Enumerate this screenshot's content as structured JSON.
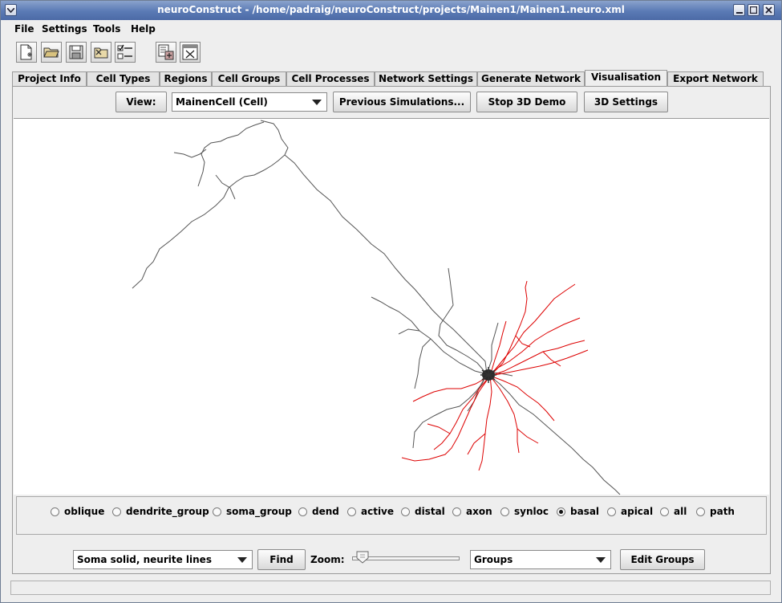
{
  "window": {
    "title": "neuroConstruct - /home/padraig/neuroConstruct/projects/Mainen1/Mainen1.neuro.xml"
  },
  "menu": [
    "File",
    "Settings",
    "Tools",
    "Help"
  ],
  "toolbar_icons": [
    "new-project-icon",
    "open-project-icon",
    "save-project-icon",
    "close-project-icon",
    "options-icon",
    "import-icon",
    "exit-icon"
  ],
  "tabs": [
    "Project Info",
    "Cell Types",
    "Regions",
    "Cell Groups",
    "Cell Processes",
    "Network Settings",
    "Generate Network",
    "Visualisation",
    "Export Network"
  ],
  "active_tab": "Visualisation",
  "controls": {
    "view_button": "View:",
    "view_select": "MainenCell (Cell)",
    "prev_sims_button": "Previous Simulations...",
    "stop_demo_button": "Stop 3D Demo",
    "settings_3d_button": "3D Settings"
  },
  "groups_radio": [
    {
      "label": "oblique",
      "selected": false
    },
    {
      "label": "dendrite_group",
      "selected": false
    },
    {
      "label": "soma_group",
      "selected": false
    },
    {
      "label": "dend",
      "selected": false
    },
    {
      "label": "active",
      "selected": false
    },
    {
      "label": "distal",
      "selected": false
    },
    {
      "label": "axon",
      "selected": false
    },
    {
      "label": "synloc",
      "selected": false
    },
    {
      "label": "basal",
      "selected": true
    },
    {
      "label": "apical",
      "selected": false
    },
    {
      "label": "all",
      "selected": false
    },
    {
      "label": "path",
      "selected": false
    }
  ],
  "bottom": {
    "display_select": "Soma solid, neurite lines",
    "find_button": "Find",
    "zoom_label": "Zoom:",
    "groups_select": "Groups",
    "edit_groups_button": "Edit Groups"
  },
  "colors": {
    "highlight": "#dd0000",
    "neurite": "#555555",
    "titlebar": "#5a7ab5"
  }
}
